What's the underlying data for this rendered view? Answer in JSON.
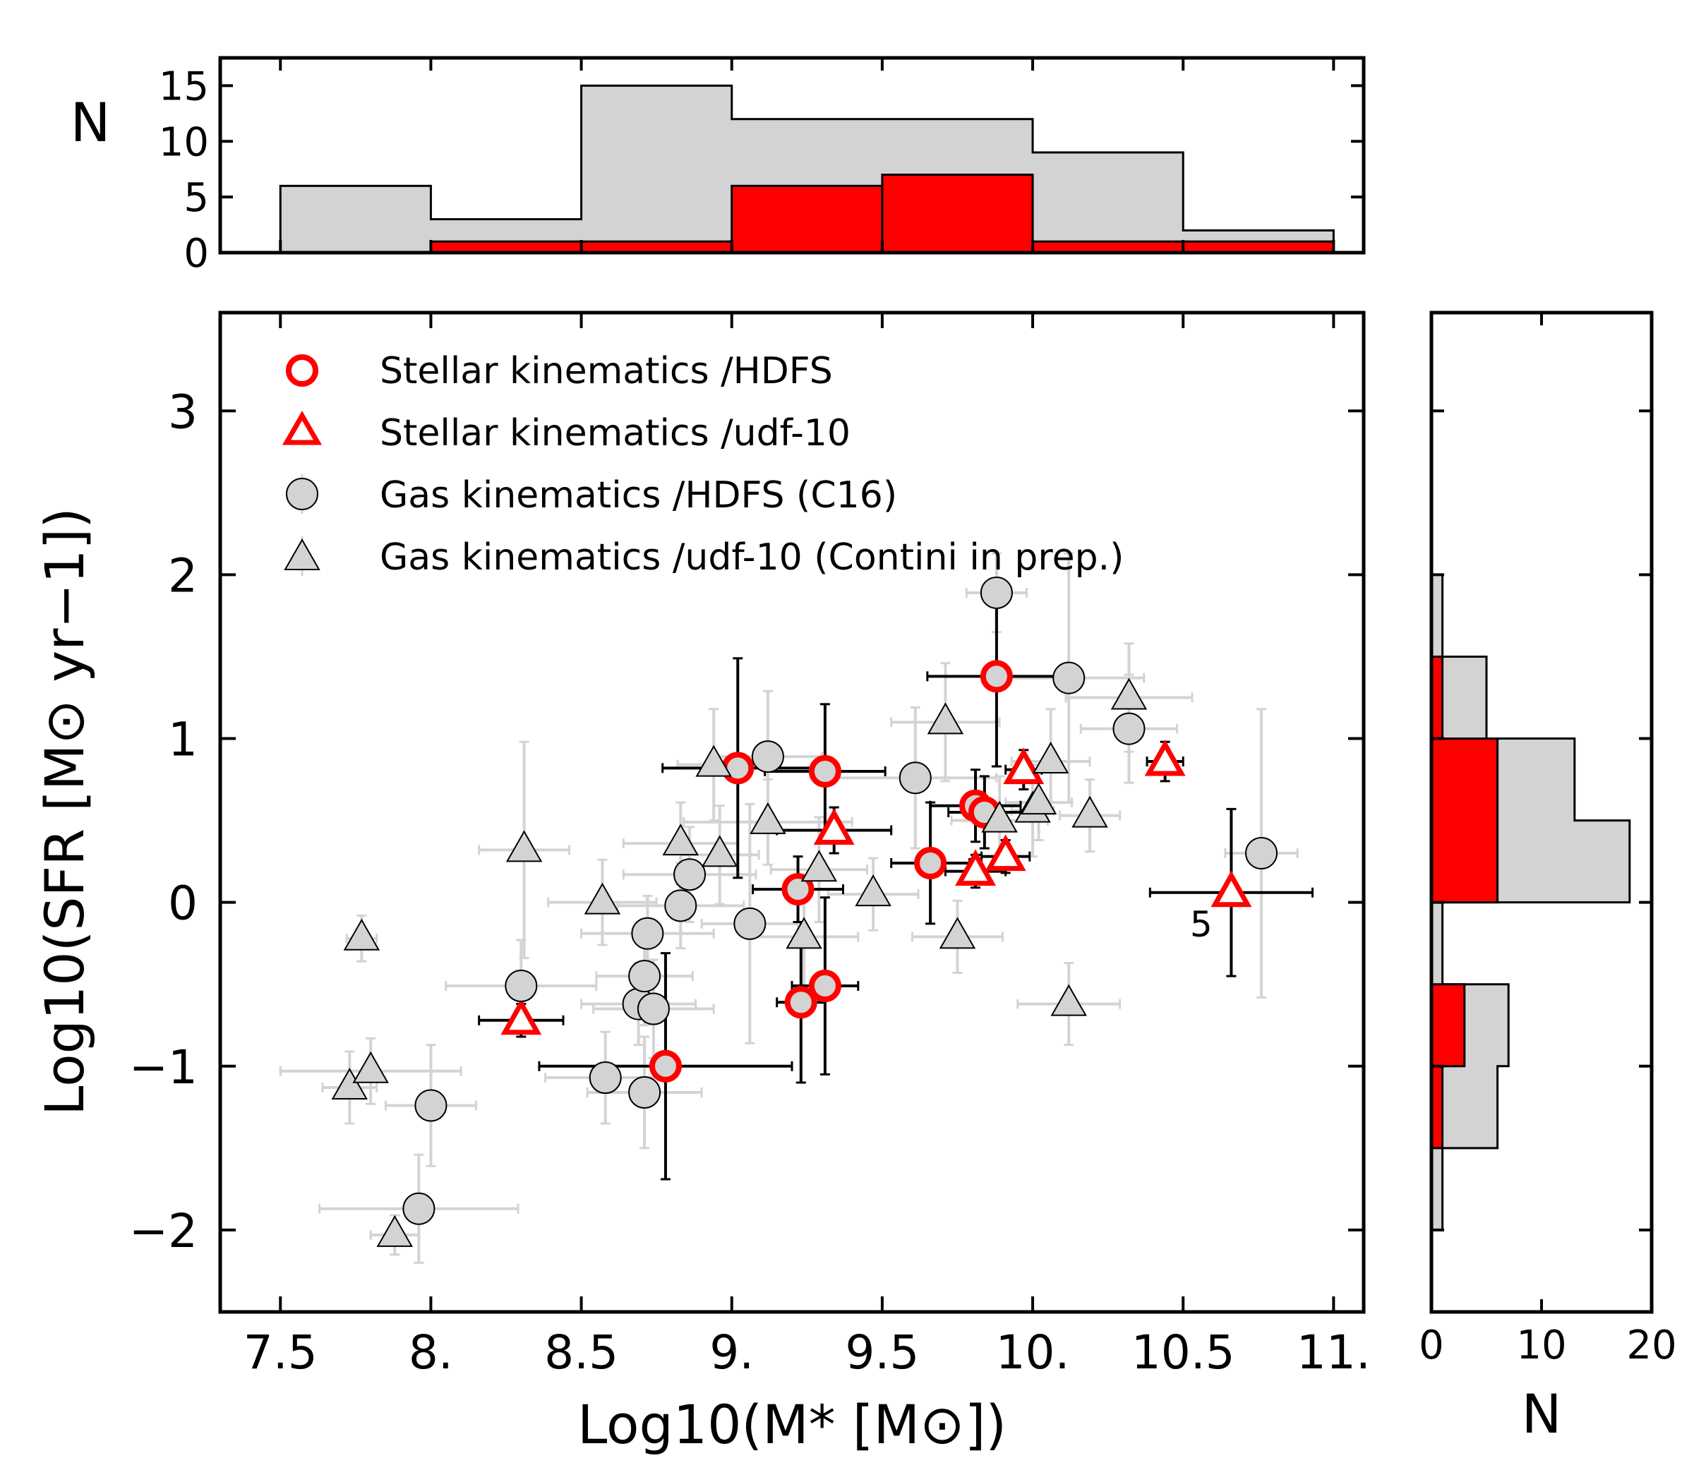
{
  "chart_data": [
    {
      "type": "scatter",
      "panel": "main",
      "xlabel": "Log10(M* [M⊙])",
      "ylabel": "Log10(SFR [M⊙ yr−1])",
      "xlim": [
        7.3,
        11.1
      ],
      "ylim": [
        -2.5,
        3.6
      ],
      "x_ticks": [
        7.5,
        8.0,
        8.5,
        9.0,
        9.5,
        10.0,
        10.5,
        11.0
      ],
      "x_tick_labels": [
        "7.5",
        "8.",
        "8.5",
        "9.",
        "9.5",
        "10.",
        "10.5",
        "11."
      ],
      "y_ticks": [
        -2,
        -1,
        0,
        1,
        2,
        3
      ],
      "y_tick_labels": [
        "−2",
        "−1",
        "0",
        "1",
        "2",
        "3"
      ],
      "legend_placement": "upper-left",
      "annotations": [
        {
          "text": "5",
          "x": 10.56,
          "y": -0.13
        }
      ],
      "series": [
        {
          "name": "Stellar kinematics /HDFS",
          "marker": "open-circle",
          "color": "#ff0000",
          "points": [
            {
              "x": 9.02,
              "y": 0.82,
              "xerr": 0.25,
              "yerr": 0.67
            },
            {
              "x": 9.31,
              "y": 0.8,
              "xerr": 0.2,
              "yerr": 0.41
            },
            {
              "x": 9.22,
              "y": 0.08,
              "xerr": 0.15,
              "yerr": 0.2
            },
            {
              "x": 9.23,
              "y": -0.61,
              "xerr": 0.08,
              "yerr": 0.49
            },
            {
              "x": 9.31,
              "y": -0.51,
              "xerr": 0.11,
              "yerr": 0.54
            },
            {
              "x": 8.78,
              "y": -1.0,
              "xerr": 0.42,
              "yerr": 0.69
            },
            {
              "x": 9.66,
              "y": 0.24,
              "xerr": 0.13,
              "yerr": 0.37
            },
            {
              "x": 9.81,
              "y": 0.59,
              "xerr": 0.15,
              "yerr": 0.22
            },
            {
              "x": 9.84,
              "y": 0.55,
              "xerr": 0.12,
              "yerr": 0.22
            },
            {
              "x": 9.88,
              "y": 1.38,
              "xerr": 0.23,
              "yerr": 0.55
            }
          ]
        },
        {
          "name": "Stellar kinematics /udf-10",
          "marker": "open-triangle",
          "color": "#ff0000",
          "points": [
            {
              "x": 8.3,
              "y": -0.72,
              "xerr": 0.14,
              "yerr": 0.1
            },
            {
              "x": 9.34,
              "y": 0.44,
              "xerr": 0.19,
              "yerr": 0.14
            },
            {
              "x": 9.81,
              "y": 0.19,
              "xerr": 0.1,
              "yerr": 0.1
            },
            {
              "x": 9.91,
              "y": 0.28,
              "xerr": 0.08,
              "yerr": 0.1
            },
            {
              "x": 9.97,
              "y": 0.81,
              "xerr": 0.06,
              "yerr": 0.12
            },
            {
              "x": 10.44,
              "y": 0.86,
              "xerr": 0.06,
              "yerr": 0.12
            },
            {
              "x": 10.66,
              "y": 0.06,
              "xerr": 0.27,
              "yerr": 0.51
            }
          ]
        },
        {
          "name": "Gas kinematics /HDFS (C16)",
          "marker": "filled-circle",
          "color": "#d3d3d3",
          "points": [
            {
              "x": 7.96,
              "y": -1.87,
              "xerr": 0.33,
              "yerr": 0.33
            },
            {
              "x": 8.0,
              "y": -1.24,
              "xerr": 0.15,
              "yerr": 0.37
            },
            {
              "x": 8.3,
              "y": -0.51,
              "xerr": 0.25,
              "yerr": 0.28
            },
            {
              "x": 8.58,
              "y": -1.07,
              "xerr": 0.2,
              "yerr": 0.28
            },
            {
              "x": 8.69,
              "y": -0.62,
              "xerr": 0.19,
              "yerr": 0.25
            },
            {
              "x": 8.71,
              "y": -0.45,
              "xerr": 0.16,
              "yerr": 0.3
            },
            {
              "x": 8.71,
              "y": -1.16,
              "xerr": 0.19,
              "yerr": 0.34
            },
            {
              "x": 8.72,
              "y": -0.19,
              "xerr": 0.22,
              "yerr": 0.23
            },
            {
              "x": 8.74,
              "y": -0.65,
              "xerr": 0.2,
              "yerr": 0.3
            },
            {
              "x": 8.83,
              "y": -0.02,
              "xerr": 0.21,
              "yerr": 0.26
            },
            {
              "x": 8.86,
              "y": 0.17,
              "xerr": 0.22,
              "yerr": 0.29
            },
            {
              "x": 9.06,
              "y": -0.13,
              "xerr": 0.16,
              "yerr": 0.73
            },
            {
              "x": 9.12,
              "y": 0.89,
              "xerr": 0.18,
              "yerr": 0.4
            },
            {
              "x": 9.61,
              "y": 0.76,
              "xerr": 0.27,
              "yerr": 0.43
            },
            {
              "x": 9.88,
              "y": 1.89,
              "xerr": 0.1,
              "yerr": 0.24
            },
            {
              "x": 10.12,
              "y": 1.37,
              "xerr": 0.25,
              "yerr": 0.76
            },
            {
              "x": 10.32,
              "y": 1.06,
              "xerr": 0.16,
              "yerr": 0.33
            },
            {
              "x": 10.76,
              "y": 0.3,
              "xerr": 0.12,
              "yerr": 0.88
            }
          ]
        },
        {
          "name": "Gas kinematics /udf-10 (Contini in prep.)",
          "marker": "filled-triangle",
          "color": "#d3d3d3",
          "points": [
            {
              "x": 7.73,
              "y": -1.13,
              "xerr": 0.09,
              "yerr": 0.22
            },
            {
              "x": 7.77,
              "y": -0.22,
              "xerr": 0.05,
              "yerr": 0.14
            },
            {
              "x": 7.8,
              "y": -1.03,
              "xerr": 0.3,
              "yerr": 0.2
            },
            {
              "x": 7.88,
              "y": -2.03,
              "xerr": 0.08,
              "yerr": 0.12
            },
            {
              "x": 8.31,
              "y": 0.32,
              "xerr": 0.15,
              "yerr": 0.66
            },
            {
              "x": 8.57,
              "y": 0.0,
              "xerr": 0.18,
              "yerr": 0.26
            },
            {
              "x": 8.83,
              "y": 0.36,
              "xerr": 0.19,
              "yerr": 0.25
            },
            {
              "x": 8.94,
              "y": 0.84,
              "xerr": 0.12,
              "yerr": 0.34
            },
            {
              "x": 8.96,
              "y": 0.29,
              "xerr": 0.13,
              "yerr": 0.3
            },
            {
              "x": 9.12,
              "y": 0.49,
              "xerr": 0.28,
              "yerr": 0.26
            },
            {
              "x": 9.24,
              "y": -0.21,
              "xerr": 0.18,
              "yerr": 0.3
            },
            {
              "x": 9.29,
              "y": 0.2,
              "xerr": 0.16,
              "yerr": 0.32
            },
            {
              "x": 9.47,
              "y": 0.05,
              "xerr": 0.15,
              "yerr": 0.22
            },
            {
              "x": 9.71,
              "y": 1.1,
              "xerr": 0.18,
              "yerr": 0.36
            },
            {
              "x": 9.75,
              "y": -0.21,
              "xerr": 0.15,
              "yerr": 0.22
            },
            {
              "x": 9.89,
              "y": 0.5,
              "xerr": 0.16,
              "yerr": 0.27
            },
            {
              "x": 10.0,
              "y": 0.56,
              "xerr": 0.07,
              "yerr": 0.28
            },
            {
              "x": 10.02,
              "y": 0.61,
              "xerr": 0.11,
              "yerr": 0.23
            },
            {
              "x": 10.06,
              "y": 0.86,
              "xerr": 0.13,
              "yerr": 0.32
            },
            {
              "x": 10.12,
              "y": -0.62,
              "xerr": 0.17,
              "yerr": 0.25
            },
            {
              "x": 10.19,
              "y": 0.53,
              "xerr": 0.1,
              "yerr": 0.22
            },
            {
              "x": 10.32,
              "y": 1.25,
              "xerr": 0.21,
              "yerr": 0.33
            }
          ]
        }
      ]
    },
    {
      "type": "bar",
      "panel": "top-histogram",
      "ylabel": "N",
      "xlim": [
        7.3,
        11.1
      ],
      "ylim": [
        0,
        17.5
      ],
      "y_ticks": [
        0,
        5,
        10,
        15
      ],
      "y_tick_labels": [
        "0",
        "5",
        "10",
        "15"
      ],
      "bin_edges": [
        7.5,
        8.0,
        8.5,
        9.0,
        9.5,
        10.0,
        10.5,
        11.0
      ],
      "series": [
        {
          "color": "#d3d3d3",
          "values": [
            6,
            3,
            15,
            12,
            12,
            9,
            2
          ]
        },
        {
          "color": "#ff0000",
          "values": [
            0,
            1,
            1,
            6,
            7,
            1,
            1
          ],
          "bin_edges": [
            7.5,
            8.0,
            8.5,
            9.0,
            9.5,
            10.0,
            10.5,
            11.0
          ]
        }
      ],
      "red_split_bins": [
        {
          "x0": 9.0,
          "x1": 9.5,
          "value": 6
        },
        {
          "x0": 9.5,
          "x1": 10.0,
          "value": 7
        }
      ]
    },
    {
      "type": "bar",
      "panel": "right-histogram",
      "orientation": "horizontal",
      "xlabel": "N",
      "xlim": [
        0,
        20
      ],
      "ylim": [
        -2.5,
        3.6
      ],
      "x_ticks": [
        0,
        10,
        20
      ],
      "x_tick_labels": [
        "0",
        "10",
        "20"
      ],
      "gray_bins": [
        {
          "y0": -2.0,
          "y1": -1.5,
          "value": 1
        },
        {
          "y0": -1.5,
          "y1": -1.0,
          "value": 6
        },
        {
          "y0": -1.0,
          "y1": -0.5,
          "value": 7
        },
        {
          "y0": -0.5,
          "y1": 0.0,
          "value": 1
        },
        {
          "y0": 0.0,
          "y1": 0.5,
          "value": 18
        },
        {
          "y0": 0.5,
          "y1": 1.0,
          "value": 13
        },
        {
          "y0": 1.0,
          "y1": 1.5,
          "value": 5
        },
        {
          "y0": 1.5,
          "y1": 2.0,
          "value": 1
        }
      ],
      "red_bins": [
        {
          "y0": -1.5,
          "y1": -1.0,
          "value": 1
        },
        {
          "y0": -1.0,
          "y1": -0.5,
          "value": 3
        },
        {
          "y0": 0.0,
          "y1": 1.0,
          "value": 6
        },
        {
          "y0": 1.0,
          "y1": 1.5,
          "value": 1
        }
      ]
    }
  ]
}
